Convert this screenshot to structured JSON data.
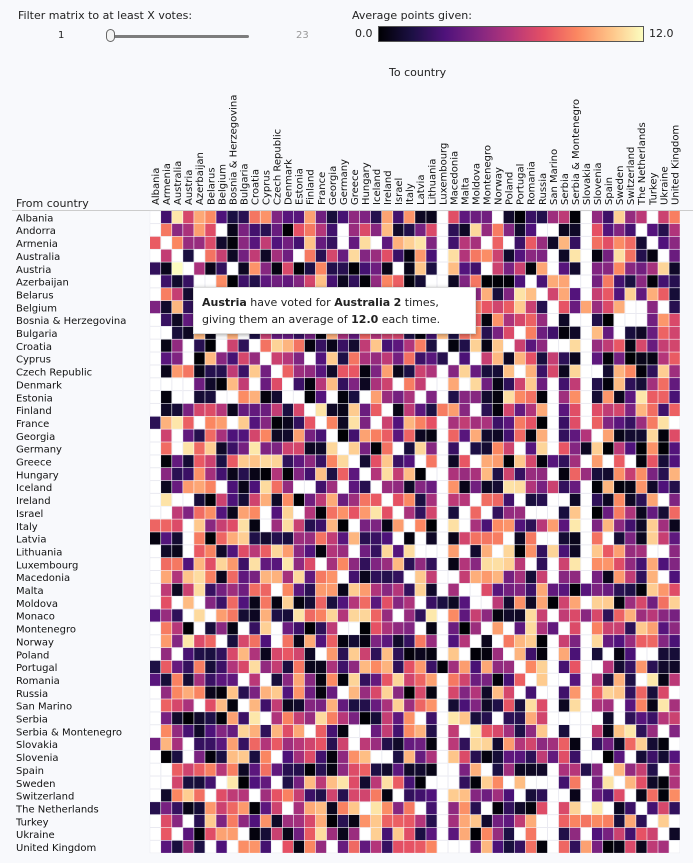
{
  "filter": {
    "label": "Filter matrix to at least X votes:",
    "min": "1",
    "max": "23",
    "value": 1
  },
  "legend": {
    "title": "Average points given:",
    "min": "0.0",
    "max": "12.0"
  },
  "colors": {
    "scale": [
      "#000004",
      "#1c1044",
      "#4f127b",
      "#812581",
      "#b5367a",
      "#e55064",
      "#fb8761",
      "#fec287",
      "#fcfdbf"
    ],
    "empty": "#ffffff",
    "grid": "#e6e6ee"
  },
  "chart_data": {
    "type": "heatmap",
    "xlabel": "To country",
    "ylabel": "From country",
    "value_range": [
      0,
      12
    ],
    "to_countries": [
      "Albania",
      "Armenia",
      "Australia",
      "Austria",
      "Azerbaijan",
      "Belarus",
      "Belgium",
      "Bosnia & Herzegovina",
      "Bulgaria",
      "Croatia",
      "Cyprus",
      "Czech Republic",
      "Denmark",
      "Estonia",
      "Finland",
      "France",
      "Georgia",
      "Germany",
      "Greece",
      "Hungary",
      "Iceland",
      "Ireland",
      "Israel",
      "Italy",
      "Latvia",
      "Lithuania",
      "Luxembourg",
      "Macedonia",
      "Malta",
      "Moldova",
      "Montenegro",
      "Norway",
      "Poland",
      "Portugal",
      "Romania",
      "Russia",
      "San Marino",
      "Serbia",
      "Serbia & Montenegro",
      "Slovakia",
      "Slovenia",
      "Spain",
      "Sweden",
      "Switzerland",
      "The Netherlands",
      "Turkey",
      "Ukraine",
      "United Kingdom"
    ],
    "from_countries": [
      "Albania",
      "Andorra",
      "Armenia",
      "Australia",
      "Austria",
      "Azerbaijan",
      "Belarus",
      "Belgium",
      "Bosnia & Herzegovina",
      "Bulgaria",
      "Croatia",
      "Cyprus",
      "Czech Republic",
      "Denmark",
      "Estonia",
      "Finland",
      "France",
      "Georgia",
      "Germany",
      "Greece",
      "Hungary",
      "Iceland",
      "Ireland",
      "Israel",
      "Italy",
      "Latvia",
      "Lithuania",
      "Luxembourg",
      "Macedonia",
      "Malta",
      "Moldova",
      "Monaco",
      "Montenegro",
      "Norway",
      "Poland",
      "Portugal",
      "Romania",
      "Russia",
      "San Marino",
      "Serbia",
      "Serbia & Montenegro",
      "Slovakia",
      "Slovenia",
      "Spain",
      "Sweden",
      "Switzerland",
      "The Netherlands",
      "Turkey",
      "Ukraine",
      "United Kingdom"
    ],
    "empty_to_columns": [
      "Albania",
      "Luxembourg",
      "San Marino",
      "Slovakia"
    ],
    "highlight": {
      "from": "Austria",
      "to": "Australia",
      "votes": 2,
      "average": 12.0
    }
  },
  "tooltip": {
    "from": "Austria",
    "t1": " have voted for ",
    "to": "Australia",
    "t2": " ",
    "votes": "2",
    "t3": " times,",
    "t4": "giving them an average of ",
    "avg": "12.0",
    "t5": " each time."
  }
}
